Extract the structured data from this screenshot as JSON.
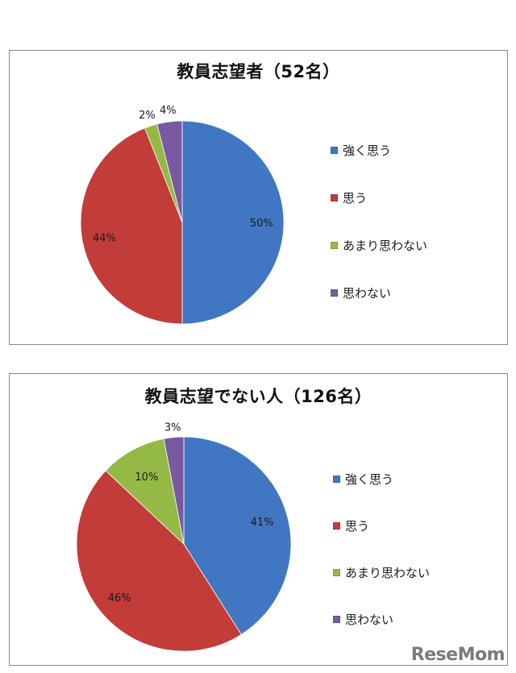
{
  "charts": [
    {
      "title": "教員志望者（52名）",
      "legend": [
        "強く思う",
        "思う",
        "あまり思わない",
        "思わない"
      ]
    },
    {
      "title": "教員志望でない人（126名）",
      "legend": [
        "強く思う",
        "思う",
        "あまり思わない",
        "思わない"
      ]
    }
  ],
  "colors": {
    "strongly_agree": "#4177C2",
    "agree": "#C23C3A",
    "disagree_somewhat": "#94BA45",
    "disagree": "#7B59A2"
  },
  "watermark": "ReseMom",
  "chart_data": [
    {
      "type": "pie",
      "title": "教員志望者（52名）",
      "categories": [
        "強く思う",
        "思う",
        "あまり思わない",
        "思わない"
      ],
      "values": [
        50,
        44,
        2,
        4
      ],
      "labels": [
        "50%",
        "44%",
        "2%",
        "4%"
      ],
      "colors": [
        "#4177C2",
        "#C23C3A",
        "#94BA45",
        "#7B59A2"
      ],
      "start_angle": "12 o'clock, clockwise",
      "legend_position": "right"
    },
    {
      "type": "pie",
      "title": "教員志望でない人（126名）",
      "categories": [
        "強く思う",
        "思う",
        "あまり思わない",
        "思わない"
      ],
      "values": [
        41,
        46,
        10,
        3
      ],
      "labels": [
        "41%",
        "46%",
        "10%",
        "3%"
      ],
      "colors": [
        "#4177C2",
        "#C23C3A",
        "#94BA45",
        "#7B59A2"
      ],
      "start_angle": "12 o'clock, clockwise",
      "legend_position": "right"
    }
  ]
}
